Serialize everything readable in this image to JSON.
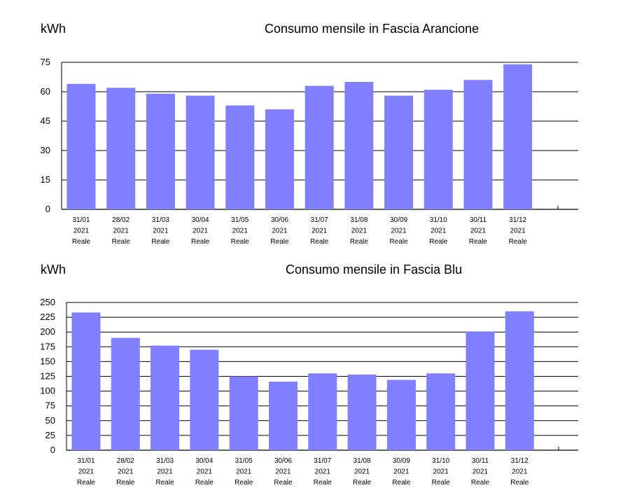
{
  "chart_data": [
    {
      "type": "bar",
      "title": "Consumo mensile in Fascia Arancione",
      "ylabel": "kWh",
      "xlabel": "",
      "ylim": [
        0,
        75
      ],
      "yticks": [
        0,
        15,
        30,
        45,
        60,
        75
      ],
      "grid": true,
      "bar_color": "#8080ff",
      "categories": [
        [
          "31/01",
          "2021",
          "Reale"
        ],
        [
          "28/02",
          "2021",
          "Reale"
        ],
        [
          "31/03",
          "2021",
          "Reale"
        ],
        [
          "30/04",
          "2021",
          "Reale"
        ],
        [
          "31/05",
          "2021",
          "Reale"
        ],
        [
          "30/06",
          "2021",
          "Reale"
        ],
        [
          "31/07",
          "2021",
          "Reale"
        ],
        [
          "31/08",
          "2021",
          "Reale"
        ],
        [
          "30/09",
          "2021",
          "Reale"
        ],
        [
          "31/10",
          "2021",
          "Reale"
        ],
        [
          "30/11",
          "2021",
          "Reale"
        ],
        [
          "31/12",
          "2021",
          "Reale"
        ]
      ],
      "values": [
        64,
        62,
        59,
        58,
        53,
        51,
        63,
        65,
        58,
        61,
        66,
        74
      ]
    },
    {
      "type": "bar",
      "title": "Consumo mensile in Fascia Blu",
      "ylabel": "kWh",
      "xlabel": "",
      "ylim": [
        0,
        250
      ],
      "yticks": [
        0,
        25,
        50,
        75,
        100,
        125,
        150,
        175,
        200,
        225,
        250
      ],
      "grid": true,
      "bar_color": "#8080ff",
      "categories": [
        [
          "31/01",
          "2021",
          "Reale"
        ],
        [
          "28/02",
          "2021",
          "Reale"
        ],
        [
          "31/03",
          "2021",
          "Reale"
        ],
        [
          "30/04",
          "2021",
          "Reale"
        ],
        [
          "31/05",
          "2021",
          "Reale"
        ],
        [
          "30/06",
          "2021",
          "Reale"
        ],
        [
          "31/07",
          "2021",
          "Reale"
        ],
        [
          "31/08",
          "2021",
          "Reale"
        ],
        [
          "30/09",
          "2021",
          "Reale"
        ],
        [
          "31/10",
          "2021",
          "Reale"
        ],
        [
          "30/11",
          "2021",
          "Reale"
        ],
        [
          "31/12",
          "2021",
          "Reale"
        ]
      ],
      "values": [
        233,
        190,
        177,
        170,
        125,
        116,
        130,
        128,
        119,
        130,
        201,
        235
      ]
    }
  ]
}
